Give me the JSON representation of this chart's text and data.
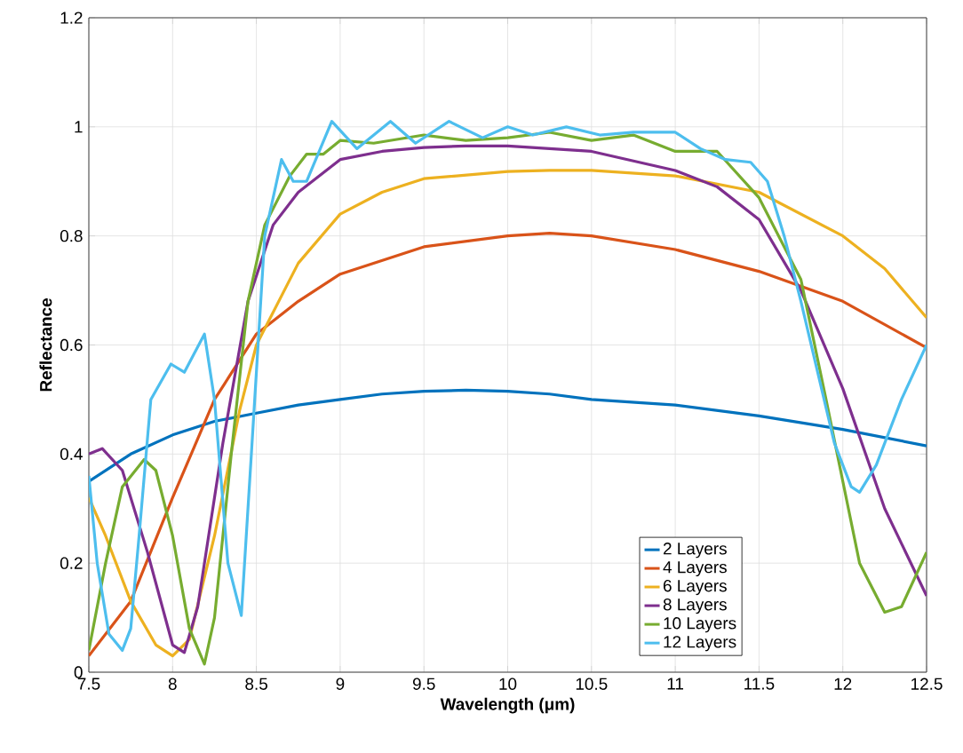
{
  "chart_data": {
    "type": "line",
    "xlabel": "Wavelength (μm)",
    "ylabel": "Reflectance",
    "xlim": [
      7.5,
      12.5
    ],
    "ylim": [
      0,
      1.2
    ],
    "xticks": [
      7.5,
      8,
      8.5,
      9,
      9.5,
      10,
      10.5,
      11,
      11.5,
      12,
      12.5
    ],
    "yticks": [
      0,
      0.2,
      0.4,
      0.6,
      0.8,
      1,
      1.2
    ],
    "grid": true,
    "legend": "bottom right",
    "line_style": "solid",
    "series": [
      {
        "name": "2 Layers",
        "color": "#0072bd",
        "x": [
          7.5,
          7.75,
          8,
          8.25,
          8.5,
          8.75,
          9,
          9.25,
          9.5,
          9.75,
          10,
          10.25,
          10.5,
          11,
          11.5,
          12,
          12.5
        ],
        "values": [
          0.35,
          0.4,
          0.435,
          0.46,
          0.475,
          0.49,
          0.5,
          0.51,
          0.515,
          0.517,
          0.515,
          0.51,
          0.5,
          0.49,
          0.47,
          0.445,
          0.415
        ]
      },
      {
        "name": "4 Layers",
        "color": "#d95319",
        "x": [
          7.5,
          7.75,
          8,
          8.25,
          8.5,
          8.75,
          9,
          9.5,
          10,
          10.25,
          10.5,
          11,
          11.5,
          12,
          12.5
        ],
        "values": [
          0.03,
          0.13,
          0.32,
          0.5,
          0.62,
          0.68,
          0.73,
          0.78,
          0.8,
          0.805,
          0.8,
          0.775,
          0.735,
          0.68,
          0.595
        ]
      },
      {
        "name": "6 Layers",
        "color": "#edb120",
        "x": [
          7.5,
          7.6,
          7.75,
          7.9,
          8,
          8.1,
          8.25,
          8.4,
          8.5,
          8.75,
          9,
          9.25,
          9.5,
          10,
          10.25,
          10.5,
          11,
          11.5,
          12,
          12.25,
          12.5
        ],
        "values": [
          0.32,
          0.25,
          0.13,
          0.05,
          0.03,
          0.06,
          0.25,
          0.48,
          0.6,
          0.75,
          0.84,
          0.88,
          0.905,
          0.918,
          0.92,
          0.92,
          0.91,
          0.88,
          0.8,
          0.74,
          0.65
        ]
      },
      {
        "name": "8 Layers",
        "color": "#7e2f8e",
        "x": [
          7.5,
          7.58,
          7.7,
          7.85,
          8,
          8.07,
          8.15,
          8.3,
          8.45,
          8.6,
          8.75,
          9,
          9.25,
          9.5,
          9.75,
          10,
          10.5,
          11,
          11.25,
          11.5,
          11.75,
          12,
          12.25,
          12.5
        ],
        "values": [
          0.4,
          0.41,
          0.37,
          0.22,
          0.05,
          0.036,
          0.12,
          0.42,
          0.68,
          0.82,
          0.88,
          0.94,
          0.955,
          0.962,
          0.965,
          0.965,
          0.955,
          0.92,
          0.89,
          0.83,
          0.7,
          0.52,
          0.3,
          0.14
        ]
      },
      {
        "name": "10 Layers",
        "color": "#77ac30",
        "x": [
          7.5,
          7.6,
          7.7,
          7.83,
          7.9,
          8,
          8.1,
          8.19,
          8.25,
          8.35,
          8.45,
          8.55,
          8.7,
          8.8,
          8.9,
          9,
          9.2,
          9.5,
          9.75,
          10,
          10.25,
          10.5,
          10.75,
          11,
          11.25,
          11.5,
          11.75,
          11.9,
          12,
          12.1,
          12.25,
          12.35,
          12.5
        ],
        "values": [
          0.04,
          0.2,
          0.34,
          0.39,
          0.37,
          0.25,
          0.08,
          0.015,
          0.1,
          0.4,
          0.68,
          0.82,
          0.91,
          0.95,
          0.95,
          0.975,
          0.97,
          0.985,
          0.975,
          0.98,
          0.99,
          0.975,
          0.985,
          0.955,
          0.955,
          0.87,
          0.72,
          0.5,
          0.35,
          0.2,
          0.11,
          0.12,
          0.22
        ]
      },
      {
        "name": "12 Layers",
        "color": "#4dbeee",
        "x": [
          7.5,
          7.55,
          7.62,
          7.7,
          7.75,
          7.8,
          7.87,
          7.99,
          8.07,
          8.19,
          8.25,
          8.33,
          8.41,
          8.47,
          8.55,
          8.65,
          8.72,
          8.8,
          8.95,
          9.1,
          9.3,
          9.45,
          9.65,
          9.85,
          10,
          10.15,
          10.35,
          10.55,
          10.75,
          11,
          11.15,
          11.3,
          11.45,
          11.55,
          11.65,
          11.75,
          11.85,
          11.95,
          12.05,
          12.1,
          12.2,
          12.35,
          12.5
        ],
        "values": [
          0.36,
          0.2,
          0.07,
          0.04,
          0.08,
          0.25,
          0.5,
          0.565,
          0.55,
          0.62,
          0.5,
          0.2,
          0.104,
          0.4,
          0.8,
          0.94,
          0.9,
          0.9,
          1.01,
          0.96,
          1.01,
          0.97,
          1.01,
          0.98,
          1,
          0.985,
          1,
          0.985,
          0.99,
          0.99,
          0.96,
          0.94,
          0.935,
          0.9,
          0.8,
          0.68,
          0.55,
          0.42,
          0.34,
          0.33,
          0.38,
          0.5,
          0.6
        ]
      }
    ]
  }
}
